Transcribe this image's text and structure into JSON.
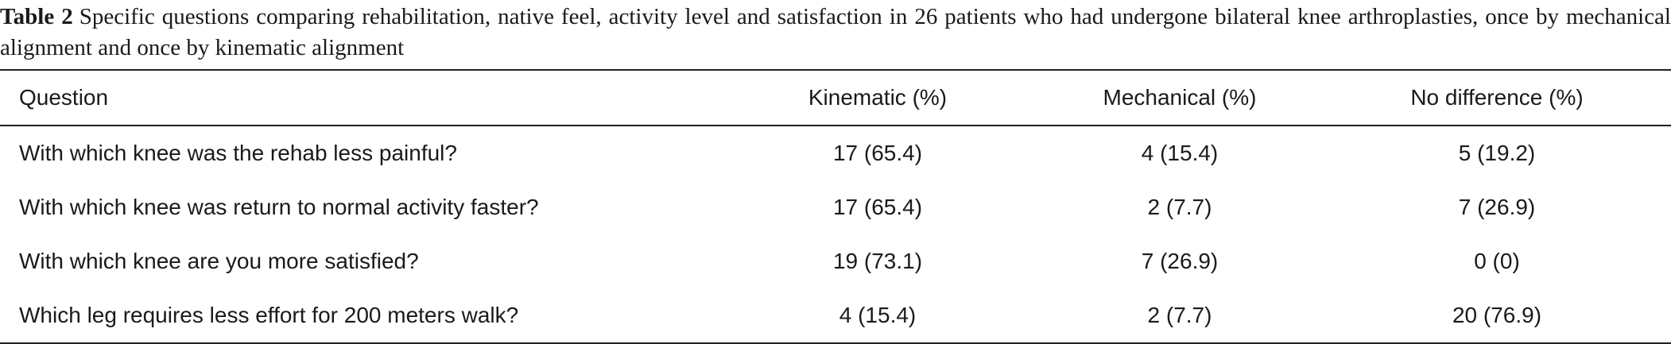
{
  "caption": {
    "label": "Table 2",
    "text": "Specific questions comparing rehabilitation, native feel, activity level and satisfaction in 26 patients who had undergone bilateral knee arthroplasties, once by mechanical alignment and once by kinematic alignment"
  },
  "table": {
    "header": [
      "Question",
      "Kinematic (%)",
      "Mechanical (%)",
      "No difference (%)"
    ],
    "rows": [
      [
        "With which knee was the rehab less painful?",
        "17 (65.4)",
        "4 (15.4)",
        "5 (19.2)"
      ],
      [
        "With which knee was return to normal activity faster?",
        "17 (65.4)",
        "2 (7.7)",
        "7 (26.9)"
      ],
      [
        "With which knee are you more satisfied?",
        "19 (73.1)",
        "7 (26.9)",
        "0 (0)"
      ],
      [
        "Which leg requires less effort for 200 meters walk?",
        "4 (15.4)",
        "2 (7.7)",
        "20 (76.9)"
      ]
    ]
  }
}
